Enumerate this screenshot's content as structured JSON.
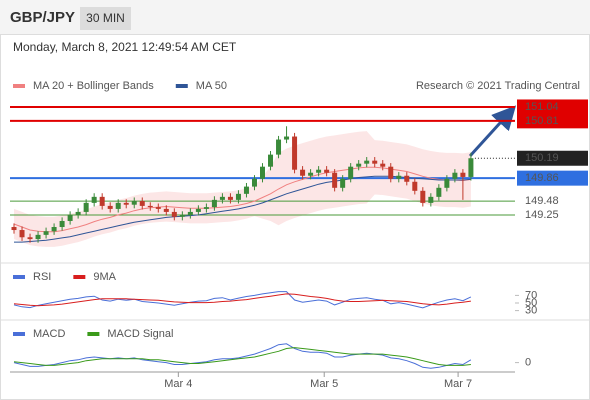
{
  "header": {
    "symbol": "GBP/JPY",
    "timeframe": "30 MIN",
    "timestamp": "Monday, March 8, 2021 12:49:54 AM CET"
  },
  "chart_data": [
    {
      "type": "candlestick",
      "credit": "Research © 2021 Trading Central",
      "xlim": [
        -0.5,
        62.5
      ],
      "ylim": [
        148.47,
        151.57
      ],
      "up_color": "#3a8a3a",
      "down_color": "#c0392b",
      "open": [
        149.05,
        149.0,
        148.88,
        148.85,
        148.92,
        148.98,
        149.05,
        149.15,
        149.25,
        149.3,
        149.45,
        149.55,
        149.4,
        149.35,
        149.45,
        149.42,
        149.48,
        149.4,
        149.38,
        149.35,
        149.3,
        149.22,
        149.25,
        149.3,
        149.35,
        149.38,
        149.5,
        149.55,
        149.5,
        149.6,
        149.72,
        149.85,
        150.05,
        150.25,
        150.5,
        150.55,
        150.0,
        149.9,
        149.95,
        150.0,
        149.95,
        149.7,
        149.85,
        150.05,
        150.1,
        150.15,
        150.1,
        150.05,
        149.85,
        149.9,
        149.8,
        149.65,
        149.45,
        149.55,
        149.7,
        149.85,
        149.95,
        149.88
      ],
      "high": [
        149.11,
        149.06,
        148.94,
        148.98,
        149.04,
        149.11,
        149.21,
        149.31,
        149.36,
        149.51,
        149.61,
        149.61,
        149.46,
        149.51,
        149.51,
        149.54,
        149.54,
        149.46,
        149.44,
        149.41,
        149.36,
        149.31,
        149.36,
        149.41,
        149.44,
        149.56,
        149.61,
        149.61,
        149.66,
        149.78,
        149.91,
        150.11,
        150.31,
        150.56,
        150.72,
        150.61,
        150.06,
        150.01,
        150.06,
        150.06,
        150.01,
        149.91,
        150.11,
        150.16,
        150.21,
        150.21,
        150.16,
        150.11,
        149.96,
        149.96,
        149.86,
        149.71,
        149.61,
        149.76,
        149.91,
        150.01,
        150.01,
        150.28
      ],
      "low": [
        148.94,
        148.82,
        148.79,
        148.79,
        148.86,
        148.92,
        148.99,
        149.09,
        149.19,
        149.24,
        149.39,
        149.34,
        149.29,
        149.29,
        149.36,
        149.36,
        149.34,
        149.32,
        149.29,
        149.24,
        149.16,
        149.16,
        149.19,
        149.24,
        149.29,
        149.32,
        149.44,
        149.44,
        149.44,
        149.54,
        149.66,
        149.79,
        149.99,
        150.19,
        150.44,
        149.94,
        149.84,
        149.84,
        149.89,
        149.89,
        149.64,
        149.64,
        149.79,
        149.99,
        150.04,
        150.04,
        149.99,
        149.79,
        149.79,
        149.74,
        149.59,
        149.39,
        149.39,
        149.49,
        149.64,
        149.79,
        149.5,
        149.82
      ],
      "close": [
        149.0,
        148.88,
        148.85,
        148.92,
        148.98,
        149.05,
        149.15,
        149.25,
        149.3,
        149.45,
        149.55,
        149.4,
        149.35,
        149.45,
        149.42,
        149.48,
        149.4,
        149.38,
        149.35,
        149.3,
        149.22,
        149.25,
        149.3,
        149.35,
        149.38,
        149.5,
        149.55,
        149.5,
        149.6,
        149.72,
        149.85,
        150.05,
        150.25,
        150.5,
        150.55,
        150.0,
        149.9,
        149.95,
        150.0,
        149.95,
        149.7,
        149.85,
        150.05,
        150.1,
        150.15,
        150.1,
        150.05,
        149.85,
        149.9,
        149.8,
        149.65,
        149.45,
        149.55,
        149.7,
        149.85,
        149.95,
        149.88,
        150.19
      ],
      "series": [
        {
          "name": "MA 20 + Bollinger Bands",
          "color": "#f08080",
          "values": [
            149.1,
            149.05,
            149.0,
            148.98,
            148.97,
            148.97,
            148.99,
            149.02,
            149.05,
            149.09,
            149.14,
            149.18,
            149.21,
            149.25,
            149.28,
            149.32,
            149.35,
            149.37,
            149.38,
            149.39,
            149.38,
            149.37,
            149.36,
            149.36,
            149.36,
            149.37,
            149.38,
            149.39,
            149.41,
            149.44,
            149.48,
            149.54,
            149.6,
            149.68,
            149.75,
            149.8,
            149.84,
            149.88,
            149.92,
            149.95,
            149.97,
            149.99,
            150.01,
            150.03,
            150.04,
            150.04,
            150.03,
            150.01,
            149.99,
            149.97,
            149.93,
            149.89,
            149.86,
            149.84,
            149.83,
            149.83,
            149.82,
            149.84
          ],
          "upper": [
            149.35,
            149.3,
            149.25,
            149.23,
            149.22,
            149.22,
            149.24,
            149.27,
            149.3,
            149.34,
            149.39,
            149.43,
            149.46,
            149.5,
            149.53,
            149.57,
            149.6,
            149.62,
            149.63,
            149.64,
            149.63,
            149.62,
            149.61,
            149.61,
            149.61,
            149.62,
            149.63,
            149.64,
            149.66,
            149.69,
            149.73,
            149.89,
            150.05,
            150.28,
            150.35,
            150.4,
            150.44,
            150.48,
            150.52,
            150.55,
            150.57,
            150.59,
            150.61,
            150.63,
            150.64,
            150.49,
            150.48,
            150.46,
            150.44,
            150.42,
            150.38,
            150.34,
            150.31,
            150.29,
            150.28,
            150.28,
            150.27,
            150.29
          ],
          "lower": [
            148.85,
            148.8,
            148.75,
            148.73,
            148.72,
            148.72,
            148.74,
            148.77,
            148.8,
            148.84,
            148.89,
            148.93,
            148.96,
            149.0,
            149.03,
            149.07,
            149.1,
            149.12,
            149.13,
            149.14,
            149.13,
            149.12,
            149.11,
            149.11,
            149.11,
            149.12,
            149.13,
            149.14,
            149.16,
            149.19,
            149.23,
            149.19,
            149.15,
            149.08,
            149.15,
            149.2,
            149.24,
            149.28,
            149.32,
            149.35,
            149.37,
            149.39,
            149.41,
            149.43,
            149.44,
            149.59,
            149.58,
            149.56,
            149.54,
            149.52,
            149.48,
            149.44,
            149.41,
            149.39,
            149.38,
            149.38,
            149.37,
            149.39
          ]
        },
        {
          "name": "MA 50",
          "color": "#2f5597",
          "values": [
            148.8,
            148.8,
            148.81,
            148.82,
            148.83,
            148.85,
            148.87,
            148.89,
            148.92,
            148.95,
            148.98,
            149.01,
            149.04,
            149.07,
            149.1,
            149.13,
            149.15,
            149.17,
            149.19,
            149.21,
            149.22,
            149.23,
            149.24,
            149.25,
            149.27,
            149.29,
            149.31,
            149.33,
            149.35,
            149.38,
            149.41,
            149.45,
            149.5,
            149.55,
            149.6,
            149.64,
            149.68,
            149.72,
            149.76,
            149.79,
            149.81,
            149.83,
            149.85,
            149.87,
            149.88,
            149.89,
            149.89,
            149.89,
            149.88,
            149.87,
            149.86,
            149.85,
            149.84,
            149.83,
            149.83,
            149.83,
            149.83,
            149.84
          ]
        }
      ],
      "levels": [
        {
          "value": 151.04,
          "color": "#e00000",
          "line": "solid",
          "label_box": true
        },
        {
          "value": 150.81,
          "color": "#e00000",
          "line": "solid",
          "label_box": true
        },
        {
          "value": 150.19,
          "color": "#222222",
          "line": "dotted",
          "label_box": true
        },
        {
          "value": 149.86,
          "color": "#2f6fe0",
          "line": "solid",
          "label_box": true
        },
        {
          "value": 149.48,
          "color": "#4a9a3a",
          "line": "solid",
          "label_box": false
        },
        {
          "value": 149.25,
          "color": "#4a9a3a",
          "line": "solid",
          "label_box": false
        }
      ]
    },
    {
      "type": "line",
      "xlim": [
        -0.5,
        62.5
      ],
      "ylim": [
        0,
        100
      ],
      "yticks": [
        70,
        50,
        30
      ],
      "series": [
        {
          "name": "RSI",
          "color": "#4a6fd8",
          "values": [
            45,
            40,
            38,
            44,
            48,
            52,
            56,
            60,
            62,
            66,
            68,
            58,
            55,
            60,
            57,
            60,
            54,
            52,
            50,
            47,
            44,
            48,
            52,
            55,
            56,
            62,
            64,
            58,
            63,
            67,
            70,
            74,
            77,
            80,
            80,
            58,
            52,
            55,
            58,
            55,
            45,
            52,
            60,
            62,
            64,
            60,
            57,
            48,
            51,
            47,
            42,
            37,
            45,
            52,
            58,
            61,
            56,
            66
          ]
        },
        {
          "name": "9MA",
          "color": "#d81e1e",
          "values": [
            48,
            46,
            44,
            43,
            44,
            45,
            47,
            50,
            53,
            56,
            59,
            61,
            61,
            61,
            61,
            60,
            59,
            58,
            57,
            55,
            53,
            52,
            51,
            51,
            51,
            52,
            54,
            55,
            57,
            59,
            62,
            65,
            68,
            71,
            74,
            73,
            70,
            67,
            65,
            62,
            58,
            55,
            54,
            54,
            55,
            56,
            57,
            56,
            55,
            54,
            51,
            48,
            46,
            45,
            47,
            50,
            52,
            55
          ]
        }
      ]
    },
    {
      "type": "line",
      "xlim": [
        -0.5,
        62.5
      ],
      "ylim": [
        -0.1,
        0.4
      ],
      "yticks": [
        0
      ],
      "xticks": [
        {
          "value": 20.5,
          "label": "Mar 4"
        },
        {
          "value": 38.7,
          "label": "Mar 5"
        },
        {
          "value": 55.4,
          "label": "Mar 7"
        }
      ],
      "series": [
        {
          "name": "MACD",
          "color": "#4a6fd8",
          "values": [
            0.0,
            -0.02,
            -0.04,
            -0.04,
            -0.03,
            -0.02,
            0.0,
            0.02,
            0.03,
            0.05,
            0.06,
            0.05,
            0.04,
            0.05,
            0.04,
            0.05,
            0.03,
            0.02,
            0.01,
            0.0,
            -0.02,
            -0.02,
            -0.01,
            0.0,
            0.01,
            0.03,
            0.04,
            0.04,
            0.05,
            0.07,
            0.09,
            0.12,
            0.15,
            0.19,
            0.2,
            0.15,
            0.12,
            0.11,
            0.11,
            0.1,
            0.06,
            0.06,
            0.08,
            0.09,
            0.1,
            0.09,
            0.08,
            0.05,
            0.04,
            0.02,
            -0.01,
            -0.05,
            -0.06,
            -0.05,
            -0.03,
            -0.01,
            -0.02,
            0.03
          ]
        },
        {
          "name": "MACD Signal",
          "color": "#3a9a1a",
          "values": [
            0.01,
            0.0,
            -0.01,
            -0.02,
            -0.03,
            -0.03,
            -0.02,
            -0.01,
            0.0,
            0.02,
            0.03,
            0.04,
            0.04,
            0.04,
            0.04,
            0.04,
            0.04,
            0.03,
            0.03,
            0.02,
            0.01,
            0.0,
            -0.01,
            -0.01,
            0.0,
            0.01,
            0.02,
            0.03,
            0.04,
            0.05,
            0.06,
            0.08,
            0.1,
            0.12,
            0.15,
            0.16,
            0.15,
            0.14,
            0.13,
            0.12,
            0.11,
            0.1,
            0.09,
            0.09,
            0.09,
            0.09,
            0.09,
            0.08,
            0.07,
            0.06,
            0.04,
            0.02,
            0.0,
            -0.02,
            -0.03,
            -0.03,
            -0.03,
            -0.02
          ]
        }
      ]
    }
  ]
}
